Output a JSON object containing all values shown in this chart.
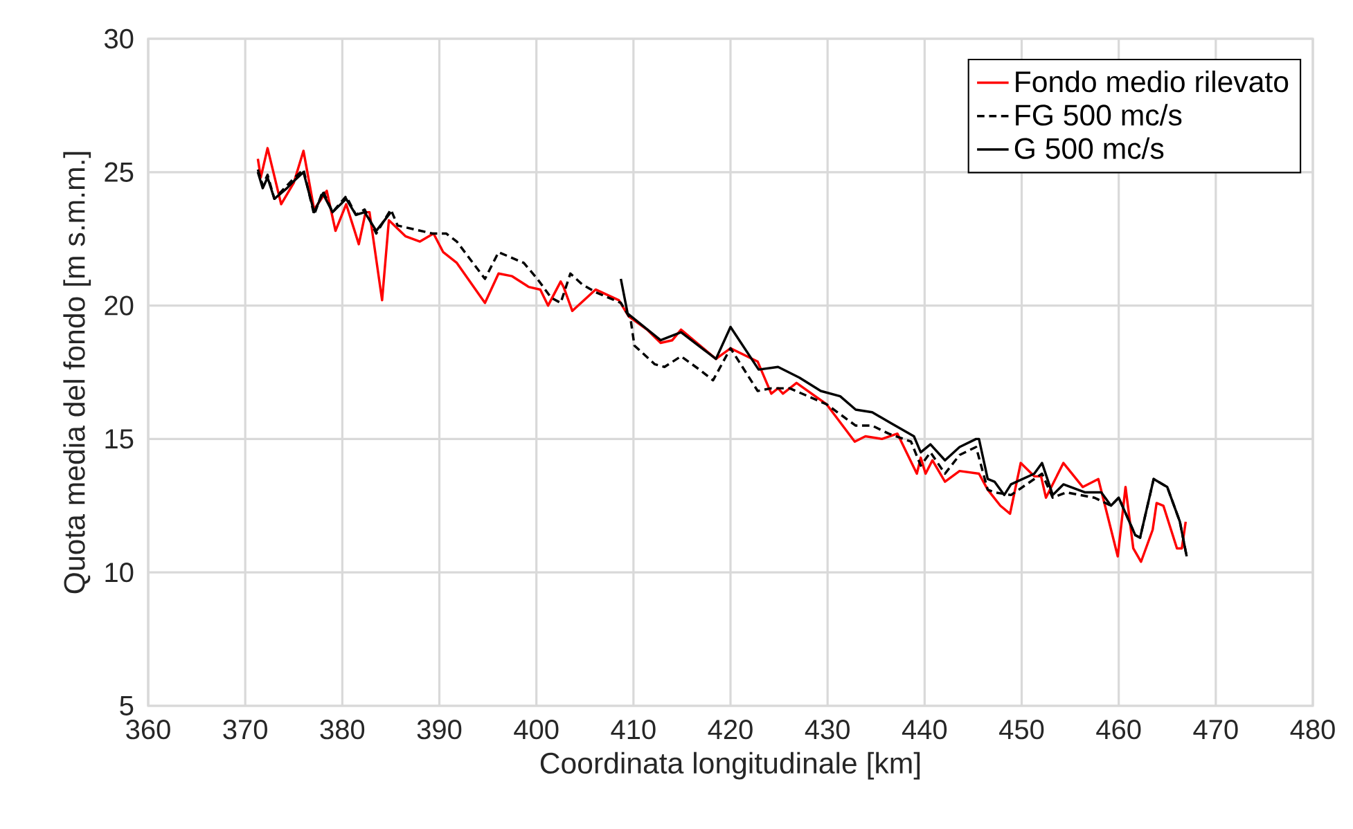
{
  "chart_data": {
    "type": "line",
    "xlabel": "Coordinata longitudinale [km]",
    "ylabel": "Quota media del fondo [m s.m.m.]",
    "xlim": [
      360,
      480
    ],
    "xticks": [
      360,
      370,
      380,
      390,
      400,
      410,
      420,
      430,
      440,
      450,
      460,
      470,
      480
    ],
    "ylim": [
      5,
      30
    ],
    "yticks": [
      5,
      10,
      15,
      20,
      25,
      30
    ],
    "grid": true,
    "legend": "top right",
    "marker": "none",
    "series": [
      {
        "name": "Fondo medio rilevato",
        "color": "#ff0000",
        "line_style": "solid",
        "x": [
          371.3,
          371.6,
          372.3,
          373.7,
          375.0,
          376.0,
          377.1,
          378.4,
          379.3,
          380.4,
          381.7,
          382.4,
          382.8,
          384.1,
          384.8,
          386.5,
          388.0,
          389.4,
          390.4,
          391.8,
          394.7,
          396.1,
          397.5,
          399.2,
          400.4,
          401.2,
          402.5,
          402.8,
          403.7,
          406.1,
          408.5,
          409.5,
          411.4,
          412.8,
          414.0,
          414.9,
          418.5,
          420.0,
          422.8,
          424.2,
          424.9,
          425.4,
          426.8,
          429.9,
          432.8,
          433.9,
          435.6,
          437.2,
          439.2,
          439.6,
          440.1,
          440.8,
          442.1,
          443.6,
          445.6,
          446.5,
          447.8,
          448.8,
          449.9,
          451.3,
          452.0,
          452.5,
          454.3,
          456.3,
          457.9,
          459.9,
          460.7,
          461.5,
          462.3,
          463.5,
          463.9,
          464.6,
          466.0,
          466.5,
          466.9
        ],
        "values": [
          25.5,
          24.8,
          25.9,
          23.8,
          24.6,
          25.8,
          23.6,
          24.3,
          22.8,
          23.8,
          22.3,
          23.5,
          23.5,
          20.2,
          23.2,
          22.6,
          22.4,
          22.7,
          22.0,
          21.6,
          20.1,
          21.2,
          21.1,
          20.7,
          20.6,
          20.0,
          20.9,
          20.7,
          19.8,
          20.6,
          20.2,
          19.6,
          19.1,
          18.6,
          18.7,
          19.1,
          18.0,
          18.4,
          17.9,
          16.7,
          16.9,
          16.7,
          17.1,
          16.3,
          14.9,
          15.1,
          15.0,
          15.2,
          13.7,
          14.3,
          13.7,
          14.2,
          13.4,
          13.8,
          13.7,
          13.1,
          12.5,
          12.2,
          14.1,
          13.6,
          13.6,
          12.8,
          14.1,
          13.2,
          13.5,
          10.6,
          13.2,
          10.9,
          10.4,
          11.6,
          12.6,
          12.5,
          10.9,
          10.9,
          11.9
        ]
      },
      {
        "name": "FG 500 mc/s",
        "color": "#000000",
        "line_style": "dashed",
        "x": [
          371.3,
          371.8,
          372.3,
          373.0,
          374.3,
          375.1,
          376.0,
          377.1,
          378.0,
          379.0,
          380.4,
          381.4,
          382.3,
          383.5,
          385.0,
          385.7,
          389.3,
          390.7,
          391.8,
          394.7,
          396.1,
          398.7,
          400.1,
          401.5,
          402.5,
          403.5,
          404.7,
          406.1,
          408.7,
          409.7,
          410.1,
          412.2,
          413.2,
          414.9,
          416.8,
          418.2,
          420.0,
          422.8,
          424.2,
          426.1,
          429.9,
          432.9,
          434.6,
          436.3,
          438.6,
          439.6,
          440.6,
          442.1,
          443.6,
          445.3,
          446.5,
          447.2,
          448.9,
          451.3,
          452.1,
          453.2,
          454.6,
          457.5,
          459.2,
          460.0,
          461.7,
          462.2,
          463.6,
          465.0,
          466.3,
          467.0
        ],
        "values": [
          25.1,
          24.5,
          24.9,
          24.0,
          24.5,
          24.8,
          25.1,
          23.4,
          24.3,
          23.5,
          24.1,
          23.4,
          23.6,
          22.7,
          23.6,
          23.0,
          22.7,
          22.7,
          22.4,
          21.0,
          22.0,
          21.6,
          21.0,
          20.3,
          20.1,
          21.2,
          20.8,
          20.5,
          20.1,
          19.5,
          18.5,
          17.8,
          17.7,
          18.1,
          17.6,
          17.2,
          18.4,
          16.8,
          16.9,
          16.9,
          16.3,
          15.5,
          15.5,
          15.2,
          14.9,
          14.0,
          14.5,
          13.7,
          14.4,
          14.7,
          13.1,
          13.0,
          12.9,
          13.5,
          13.7,
          12.8,
          13.0,
          12.8,
          12.5,
          12.8,
          11.4,
          11.3,
          13.5,
          13.2,
          11.9,
          10.6
        ]
      },
      {
        "name": "G 500 mc/s",
        "color": "#000000",
        "line_style": "solid",
        "x": [
          371.3,
          371.8,
          372.3,
          373.0,
          374.3,
          375.1,
          376.0,
          377.1,
          378.0,
          379.0,
          380.4,
          381.4,
          382.3,
          383.5,
          385.0,
          397.0,
          408.7,
          409.4,
          412.8,
          414.9,
          418.5,
          420.0,
          422.9,
          424.9,
          427.1,
          429.3,
          431.3,
          432.9,
          434.6,
          436.5,
          438.9,
          439.6,
          440.6,
          442.1,
          443.6,
          445.3,
          445.6,
          446.5,
          447.2,
          448.2,
          448.9,
          451.3,
          452.1,
          453.2,
          454.3,
          456.5,
          458.2,
          459.2,
          460.0,
          461.7,
          462.2,
          463.6,
          465.0,
          466.3,
          467.0
        ],
        "values": [
          25.0,
          24.4,
          24.8,
          24.0,
          24.4,
          24.7,
          25.0,
          23.5,
          24.2,
          23.5,
          24.0,
          23.4,
          23.5,
          22.8,
          23.5,
          null,
          21.0,
          19.7,
          18.7,
          19.0,
          18.0,
          19.2,
          17.6,
          17.7,
          17.3,
          16.8,
          16.6,
          16.1,
          16.0,
          15.6,
          15.1,
          14.5,
          14.8,
          14.2,
          14.7,
          15.0,
          15.0,
          13.5,
          13.4,
          12.9,
          13.3,
          13.7,
          14.1,
          12.9,
          13.3,
          13.0,
          13.0,
          12.5,
          12.8,
          11.4,
          11.3,
          13.5,
          13.2,
          11.9,
          10.6
        ]
      }
    ]
  }
}
